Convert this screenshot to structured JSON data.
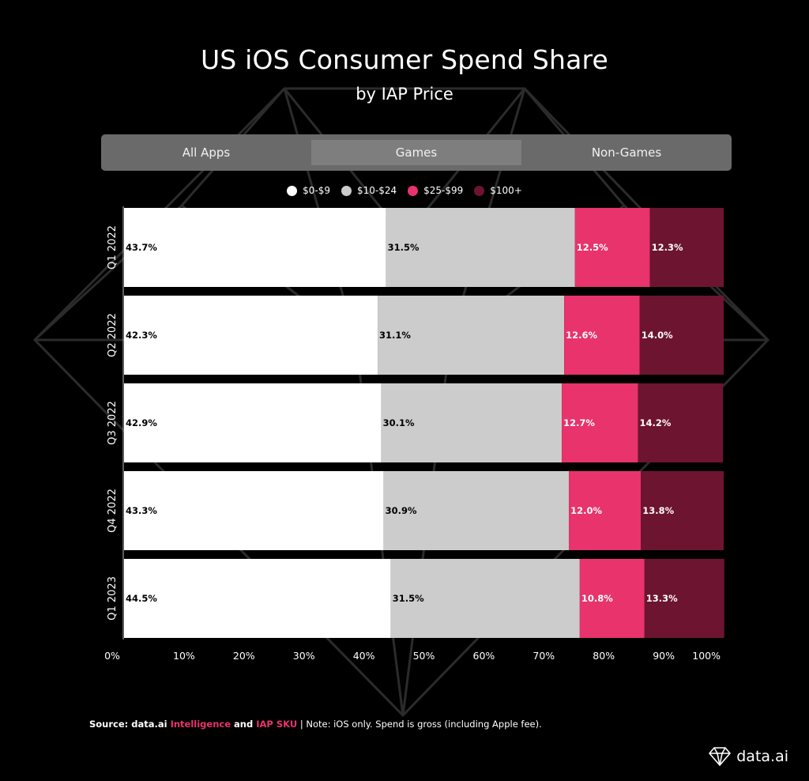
{
  "header": {
    "title": "US iOS Consumer Spend Share",
    "subtitle": "by IAP Price"
  },
  "tabs": [
    {
      "label": "All Apps",
      "active": false
    },
    {
      "label": "Games",
      "active": true
    },
    {
      "label": "Non-Games",
      "active": false
    }
  ],
  "colors": {
    "seg0": "#ffffff",
    "seg1": "#cccccc",
    "seg2": "#e8336c",
    "seg3": "#6d1431",
    "highlight": "#e8336c"
  },
  "chart_data": {
    "type": "bar",
    "orientation": "horizontal",
    "stacked": true,
    "categories": [
      "Q1 2022",
      "Q2 2022",
      "Q3 2022",
      "Q4 2022",
      "Q1 2023"
    ],
    "series": [
      {
        "name": "$0-$9",
        "values": [
          43.7,
          42.3,
          42.9,
          43.3,
          44.5
        ]
      },
      {
        "name": "$10-$24",
        "values": [
          31.5,
          31.1,
          30.1,
          30.9,
          31.5
        ]
      },
      {
        "name": "$25-$99",
        "values": [
          12.5,
          12.6,
          12.7,
          12.0,
          10.8
        ]
      },
      {
        "name": "$100+",
        "values": [
          12.3,
          14.0,
          14.2,
          13.8,
          13.3
        ]
      }
    ],
    "x_ticks": [
      "0%",
      "10%",
      "20%",
      "30%",
      "40%",
      "50%",
      "60%",
      "70%",
      "80%",
      "90%",
      "100%"
    ],
    "xlim": [
      0,
      100
    ],
    "legend_position": "top-center",
    "grid": false
  },
  "source": {
    "prefix": "Source: data.ai ",
    "link1": "Intelligence",
    "mid": " and ",
    "link2": "IAP SKU",
    "suffix": " | Note: iOS only. Spend is gross (including Apple fee)."
  },
  "brand": {
    "name": "data.ai",
    "logo_icon": "diamond-icon"
  }
}
